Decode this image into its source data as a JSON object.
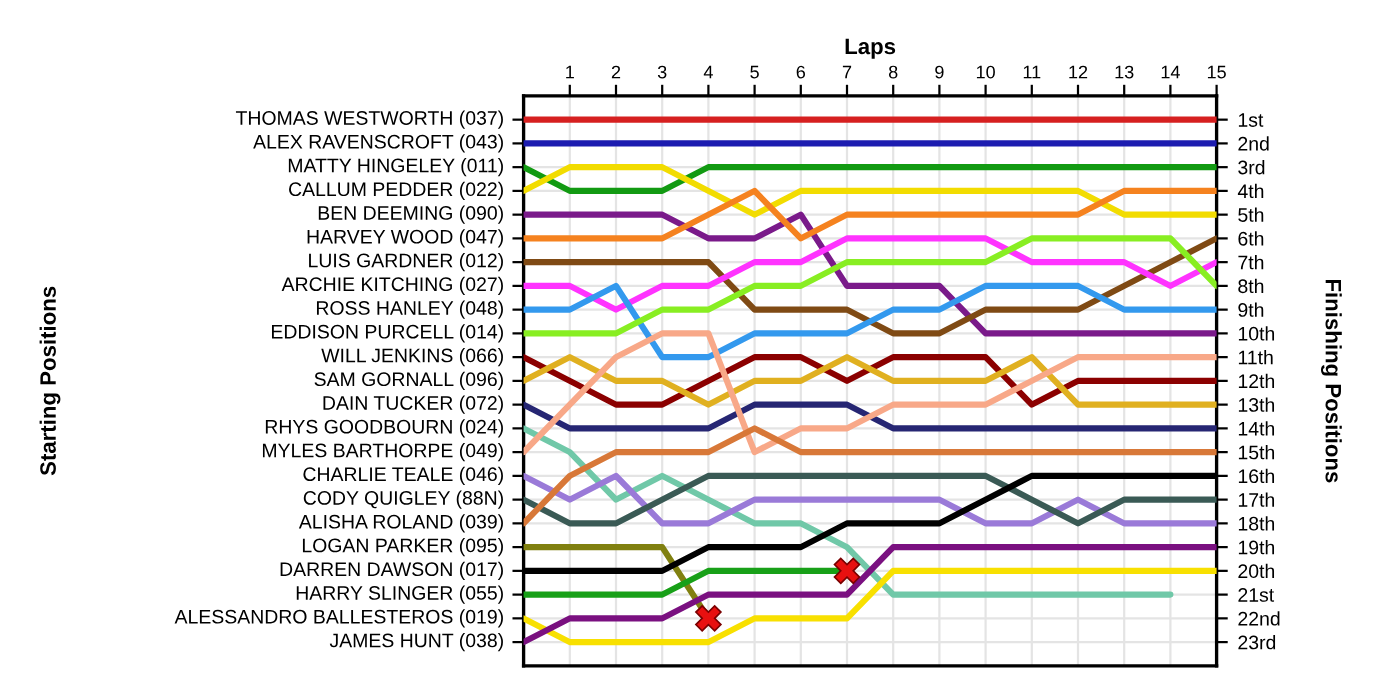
{
  "chart_data": {
    "type": "line",
    "xlabel": "Laps",
    "ylabel": "Finishing Positions",
    "annotations": [
      "Starting Positions",
      "THOMAS WESTWORTH (037)",
      "ALEX RAVENSCROFT (043)",
      "MATTY HINGELEY (011)",
      "CALLUM PEDDER (022)",
      "BEN DEEMING (090)",
      "HARVEY WOOD (047)",
      "LUIS GARDNER (012)",
      "ARCHIE KITCHING (027)",
      "ROSS HANLEY (048)",
      "EDDISON PURCELL (014)",
      "WILL JENKINS (066)",
      "SAM GORNALL (096)",
      "DAIN TUCKER (072)",
      "RHYS GOODBOURN (024)",
      "MYLES BARTHORPE (049)",
      "CHARLIE TEALE (046)",
      "CODY QUIGLEY (88N)",
      "ALISHA ROLAND (039)",
      "LOGAN PARKER (095)",
      "DARREN DAWSON (017)",
      "HARRY SLINGER (055)",
      "ALESSANDRO BALLESTEROS (019)",
      "JAMES HUNT (038)"
    ],
    "x": [
      0,
      1,
      2,
      3,
      4,
      5,
      6,
      7,
      8,
      9,
      10,
      11,
      12,
      13,
      14,
      15
    ],
    "xlim": [
      0,
      15
    ],
    "xticks": [
      1,
      2,
      3,
      4,
      5,
      6,
      7,
      8,
      9,
      10,
      11,
      12,
      13,
      14,
      15
    ],
    "ylim": [
      24,
      0
    ],
    "yticks": [
      {
        "value": 1,
        "label": "1st"
      },
      {
        "value": 2,
        "label": "2nd"
      },
      {
        "value": 3,
        "label": "3rd"
      },
      {
        "value": 4,
        "label": "4th"
      },
      {
        "value": 5,
        "label": "5th"
      },
      {
        "value": 6,
        "label": "6th"
      },
      {
        "value": 7,
        "label": "7th"
      },
      {
        "value": 8,
        "label": "8th"
      },
      {
        "value": 9,
        "label": "9th"
      },
      {
        "value": 10,
        "label": "10th"
      },
      {
        "value": 11,
        "label": "11th"
      },
      {
        "value": 12,
        "label": "12th"
      },
      {
        "value": 13,
        "label": "13th"
      },
      {
        "value": 14,
        "label": "14th"
      },
      {
        "value": 15,
        "label": "15th"
      },
      {
        "value": 16,
        "label": "16th"
      },
      {
        "value": 17,
        "label": "17th"
      },
      {
        "value": 18,
        "label": "18th"
      },
      {
        "value": 19,
        "label": "19th"
      },
      {
        "value": 20,
        "label": "20th"
      },
      {
        "value": 21,
        "label": "21st"
      },
      {
        "value": 22,
        "label": "22nd"
      },
      {
        "value": 23,
        "label": "23rd"
      }
    ],
    "grid": true,
    "marker": "none",
    "line_style": "solid",
    "series": [
      {
        "color": "#d62020",
        "values": [
          1,
          1,
          1,
          1,
          1,
          1,
          1,
          1,
          1,
          1,
          1,
          1,
          1,
          1,
          1,
          1
        ]
      },
      {
        "color": "#1c1cb0",
        "values": [
          2,
          2,
          2,
          2,
          2,
          2,
          2,
          2,
          2,
          2,
          2,
          2,
          2,
          2,
          2,
          2
        ]
      },
      {
        "color": "#129a12",
        "values": [
          3,
          4,
          4,
          4,
          3,
          3,
          3,
          3,
          3,
          3,
          3,
          3,
          3,
          3,
          3,
          3
        ]
      },
      {
        "color": "#f2dc00",
        "values": [
          4,
          3,
          3,
          3,
          4,
          5,
          4,
          4,
          4,
          4,
          4,
          4,
          4,
          5,
          5,
          5
        ]
      },
      {
        "color": "#7a1a8a",
        "values": [
          5,
          5,
          5,
          5,
          6,
          6,
          5,
          8,
          8,
          8,
          10,
          10,
          10,
          10,
          10,
          10
        ]
      },
      {
        "color": "#f5821f",
        "values": [
          6,
          6,
          6,
          6,
          5,
          4,
          6,
          5,
          5,
          5,
          5,
          5,
          5,
          4,
          4,
          4
        ]
      },
      {
        "color": "#7f4a14",
        "values": [
          7,
          7,
          7,
          7,
          7,
          9,
          9,
          9,
          10,
          10,
          9,
          9,
          9,
          8,
          7,
          6
        ]
      },
      {
        "color": "#ff33ff",
        "values": [
          8,
          8,
          9,
          8,
          8,
          7,
          7,
          6,
          6,
          6,
          6,
          7,
          7,
          7,
          8,
          7
        ]
      },
      {
        "color": "#3399ee",
        "values": [
          9,
          9,
          8,
          11,
          11,
          10,
          10,
          10,
          9,
          9,
          8,
          8,
          8,
          9,
          9,
          9
        ]
      },
      {
        "color": "#88ee22",
        "values": [
          10,
          10,
          10,
          9,
          9,
          8,
          8,
          7,
          7,
          7,
          7,
          6,
          6,
          6,
          6,
          8
        ]
      },
      {
        "color": "#8b0000",
        "values": [
          11,
          12,
          13,
          13,
          12,
          11,
          11,
          12,
          11,
          11,
          11,
          13,
          12,
          12,
          12,
          12
        ]
      },
      {
        "color": "#e0b020",
        "values": [
          12,
          11,
          12,
          12,
          13,
          12,
          12,
          11,
          12,
          12,
          12,
          11,
          13,
          13,
          13,
          13
        ]
      },
      {
        "color": "#262673",
        "values": [
          13,
          14,
          14,
          14,
          14,
          13,
          13,
          13,
          14,
          14,
          14,
          14,
          14,
          14,
          14,
          14
        ]
      },
      {
        "color": "#70c8a8",
        "values": [
          14,
          15,
          17,
          16,
          17,
          18,
          18,
          19,
          21,
          21,
          21,
          21,
          21,
          21,
          21,
          null
        ]
      },
      {
        "color": "#f8a888",
        "values": [
          15,
          13,
          11,
          10,
          10,
          15,
          14,
          14,
          13,
          13,
          13,
          12,
          11,
          11,
          11,
          11
        ]
      },
      {
        "color": "#9a7ad8",
        "values": [
          16,
          17,
          16,
          18,
          18,
          17,
          17,
          17,
          17,
          17,
          18,
          18,
          17,
          18,
          18,
          18
        ]
      },
      {
        "color": "#3a5a55",
        "values": [
          17,
          18,
          18,
          17,
          16,
          16,
          16,
          16,
          16,
          16,
          16,
          17,
          18,
          17,
          17,
          17
        ]
      },
      {
        "color": "#d87838",
        "values": [
          18,
          16,
          15,
          15,
          15,
          14,
          15,
          15,
          15,
          15,
          15,
          15,
          15,
          15,
          15,
          15
        ]
      },
      {
        "color": "#808010",
        "values": [
          19,
          19,
          19,
          19,
          22,
          null,
          null,
          null,
          null,
          null,
          null,
          null,
          null,
          null,
          null,
          null
        ]
      },
      {
        "color": "#000000",
        "values": [
          20,
          20,
          20,
          20,
          19,
          19,
          19,
          18,
          18,
          18,
          17,
          16,
          16,
          16,
          16,
          16
        ]
      },
      {
        "color": "#18a018",
        "values": [
          21,
          21,
          21,
          21,
          20,
          20,
          20,
          20,
          null,
          null,
          null,
          null,
          null,
          null,
          null,
          null
        ]
      },
      {
        "color": "#f8e000",
        "values": [
          22,
          23,
          23,
          23,
          23,
          22,
          22,
          22,
          20,
          20,
          20,
          20,
          20,
          20,
          20,
          20
        ]
      },
      {
        "color": "#7a1080",
        "values": [
          23,
          22,
          22,
          22,
          21,
          21,
          21,
          21,
          19,
          19,
          19,
          19,
          19,
          19,
          19,
          19
        ]
      },
      {
        "type": "scatter",
        "marker": "cross",
        "color": "#e81010",
        "x": [
          4,
          7
        ],
        "values": [
          22,
          20
        ]
      }
    ]
  }
}
